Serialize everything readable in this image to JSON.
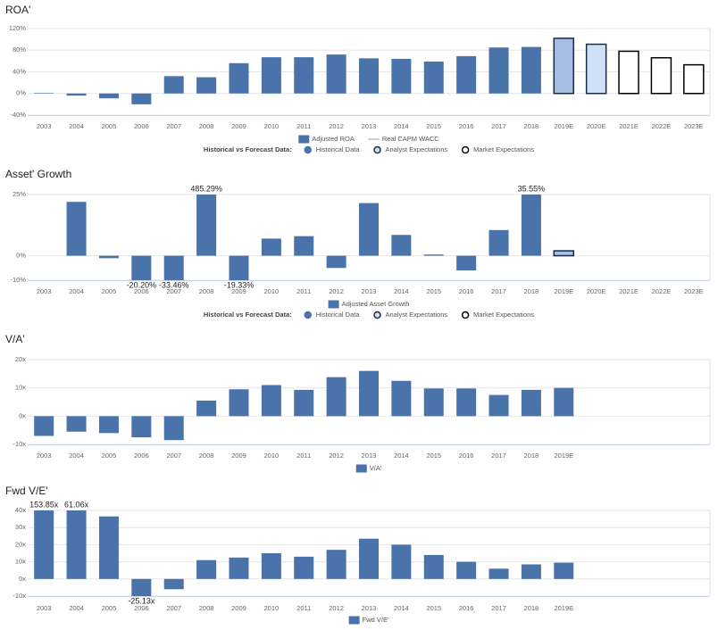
{
  "chart_data": [
    {
      "type": "bar",
      "title": "ROA'",
      "categories": [
        "2003",
        "2004",
        "2005",
        "2006",
        "2007",
        "2008",
        "2009",
        "2010",
        "2011",
        "2012",
        "2013",
        "2014",
        "2015",
        "2016",
        "2017",
        "2018",
        "2019E",
        "2020E",
        "2021E",
        "2022E",
        "2023E"
      ],
      "series": [
        {
          "name": "Adjusted ROA",
          "color": "#4a72ab",
          "values": [
            1,
            -4,
            -9,
            -20,
            32,
            30,
            56,
            67,
            67,
            72,
            65,
            64,
            59,
            69,
            85,
            86,
            102,
            91,
            78,
            66,
            53
          ],
          "bar_fills": [
            "#4a72ab",
            "#4a72ab",
            "#4a72ab",
            "#4a72ab",
            "#4a72ab",
            "#4a72ab",
            "#4a72ab",
            "#4a72ab",
            "#4a72ab",
            "#4a72ab",
            "#4a72ab",
            "#4a72ab",
            "#4a72ab",
            "#4a72ab",
            "#4a72ab",
            "#4a72ab",
            "#a3bde3",
            "#cde0f5",
            "#ffffff",
            "#ffffff",
            "#ffffff"
          ],
          "bar_outlines": [
            null,
            null,
            null,
            null,
            null,
            null,
            null,
            null,
            null,
            null,
            null,
            null,
            null,
            null,
            null,
            null,
            "#1a2a44",
            "#1a2a44",
            "#000000",
            "#000000",
            "#000000"
          ]
        }
      ],
      "ylim": [
        -40,
        120
      ],
      "yticks": [
        {
          "value": -40,
          "label": "-40%"
        },
        {
          "value": 0,
          "label": "0%"
        },
        {
          "value": 40,
          "label": "40%"
        },
        {
          "value": 80,
          "label": "80%"
        },
        {
          "value": 120,
          "label": "120%"
        }
      ],
      "grid": true,
      "legend": [
        {
          "name": "Adjusted ROA",
          "color": "#4a72ab",
          "style": "box"
        },
        {
          "name": "Real CAPM WACC",
          "color": "#cccccc",
          "style": "line"
        }
      ],
      "forecast_legend": {
        "title": "Historical vs Forecast Data:",
        "items": [
          {
            "name": "Historical Data",
            "fill": "#4a72ab",
            "stroke": "#4a72ab"
          },
          {
            "name": "Analyst Expectations",
            "fill": "#cde0f5",
            "stroke": "#1a2a44"
          },
          {
            "name": "Market Expectations",
            "fill": "#ffffff",
            "stroke": "#000000"
          }
        ]
      }
    },
    {
      "type": "bar",
      "title": "Asset' Growth",
      "categories": [
        "2003",
        "2004",
        "2005",
        "2006",
        "2007",
        "2008",
        "2009",
        "2010",
        "2011",
        "2012",
        "2013",
        "2014",
        "2015",
        "2016",
        "2017",
        "2018",
        "2019E",
        "2020E",
        "2021E",
        "2022E",
        "2023E"
      ],
      "series": [
        {
          "name": "Adjusted Asset Growth",
          "color": "#4a72ab",
          "values": [
            null,
            22,
            -1,
            -20.2,
            -33.46,
            485.29,
            -19.33,
            7,
            8,
            -5,
            21.5,
            8.5,
            0.5,
            -6,
            10.5,
            35.55,
            2,
            null,
            null,
            null,
            null
          ],
          "value_labels": [
            null,
            null,
            null,
            "-20.20%",
            "-33.46%",
            "485.29%",
            "-19.33%",
            null,
            null,
            null,
            null,
            null,
            null,
            null,
            null,
            "35.55%",
            null,
            null,
            null,
            null,
            null
          ],
          "bar_fills": [
            "#4a72ab",
            "#4a72ab",
            "#4a72ab",
            "#4a72ab",
            "#4a72ab",
            "#4a72ab",
            "#4a72ab",
            "#4a72ab",
            "#4a72ab",
            "#4a72ab",
            "#4a72ab",
            "#4a72ab",
            "#4a72ab",
            "#4a72ab",
            "#4a72ab",
            "#4a72ab",
            "#a3bde3",
            null,
            null,
            null,
            null
          ],
          "bar_outlines": [
            null,
            null,
            null,
            null,
            null,
            null,
            null,
            null,
            null,
            null,
            null,
            null,
            null,
            null,
            null,
            null,
            "#1a2a44",
            null,
            null,
            null,
            null
          ]
        }
      ],
      "ylim": [
        -10,
        25
      ],
      "yticks": [
        {
          "value": -10,
          "label": "-10%"
        },
        {
          "value": 0,
          "label": "0%"
        },
        {
          "value": 25,
          "label": "25%"
        }
      ],
      "grid": true,
      "legend": [
        {
          "name": "Adjusted Asset Growth",
          "color": "#4a72ab",
          "style": "box"
        }
      ],
      "forecast_legend": {
        "title": "Historical vs Forecast Data:",
        "items": [
          {
            "name": "Historical Data",
            "fill": "#4a72ab",
            "stroke": "#4a72ab"
          },
          {
            "name": "Analyst Expectations",
            "fill": "#cde0f5",
            "stroke": "#1a2a44"
          },
          {
            "name": "Market Expectations",
            "fill": "#ffffff",
            "stroke": "#000000"
          }
        ]
      }
    },
    {
      "type": "bar",
      "title": "V/A'",
      "categories": [
        "2003",
        "2004",
        "2005",
        "2006",
        "2007",
        "2008",
        "2009",
        "2010",
        "2011",
        "2012",
        "2013",
        "2014",
        "2015",
        "2016",
        "2017",
        "2018",
        "2019E",
        null,
        null,
        null,
        null
      ],
      "series": [
        {
          "name": "V/A'",
          "color": "#4a72ab",
          "values": [
            -7,
            -5.5,
            -6,
            -7.5,
            -8.5,
            5.5,
            9.5,
            11,
            9.3,
            13.8,
            16,
            12.5,
            9.8,
            9.8,
            7.5,
            9.3,
            10,
            null,
            null,
            null,
            null
          ]
        }
      ],
      "ylim": [
        -10,
        20
      ],
      "yticks": [
        {
          "value": -10,
          "label": "-10x"
        },
        {
          "value": 0,
          "label": "0x"
        },
        {
          "value": 10,
          "label": "10x"
        },
        {
          "value": 20,
          "label": "20x"
        }
      ],
      "grid": true,
      "legend": [
        {
          "name": "V/A'",
          "color": "#4a72ab",
          "style": "box"
        }
      ]
    },
    {
      "type": "bar",
      "title": "Fwd V/E'",
      "categories": [
        "2003",
        "2004",
        "2005",
        "2006",
        "2007",
        "2008",
        "2009",
        "2010",
        "2011",
        "2012",
        "2013",
        "2014",
        "2015",
        "2016",
        "2017",
        "2018",
        "2019E",
        null,
        null,
        null,
        null
      ],
      "series": [
        {
          "name": "Fwd V/E'",
          "color": "#4a72ab",
          "values": [
            153.85,
            61.06,
            36.5,
            -25.13,
            -6,
            11,
            12.5,
            15,
            13,
            17,
            23.5,
            20,
            14,
            10,
            6,
            8.5,
            9.5,
            null,
            null,
            null,
            null
          ],
          "value_labels": [
            "153.85x",
            "61.06x",
            null,
            "-25.13x",
            null,
            null,
            null,
            null,
            null,
            null,
            null,
            null,
            null,
            null,
            null,
            null,
            null,
            null,
            null,
            null,
            null
          ]
        }
      ],
      "ylim": [
        -10,
        40
      ],
      "yticks": [
        {
          "value": -10,
          "label": "-10x"
        },
        {
          "value": 0,
          "label": "0x"
        },
        {
          "value": 10,
          "label": "10x"
        },
        {
          "value": 20,
          "label": "20x"
        },
        {
          "value": 30,
          "label": "30x"
        },
        {
          "value": 40,
          "label": "40x"
        }
      ],
      "grid": true,
      "legend": [
        {
          "name": "Fwd V/E'",
          "color": "#4a72ab",
          "style": "box"
        }
      ]
    }
  ]
}
